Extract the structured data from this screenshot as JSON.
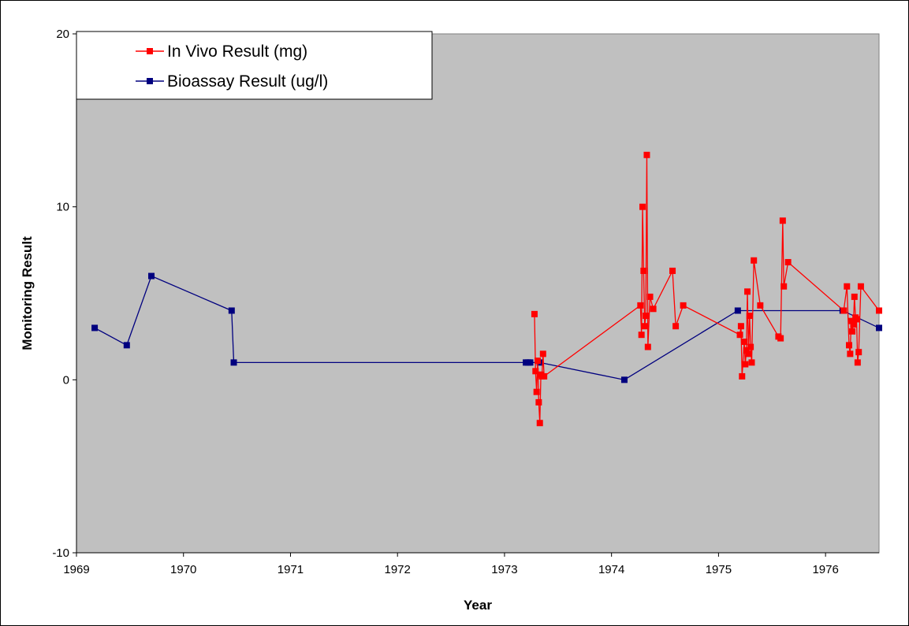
{
  "chart_data": {
    "type": "line",
    "title": "",
    "xlabel": "Year",
    "ylabel": "Monitoring Result",
    "xlim": [
      1969,
      1976.5
    ],
    "ylim": [
      -10,
      20
    ],
    "x_ticks": [
      1969,
      1970,
      1971,
      1972,
      1973,
      1974,
      1975,
      1976
    ],
    "y_ticks": [
      -10,
      0,
      10,
      20
    ],
    "grid": false,
    "legend_position": "top-left",
    "plot_background": "#c0c0c0",
    "series": [
      {
        "name": "In Vivo Result (mg)",
        "color": "#ff0000",
        "marker": "square",
        "points": [
          [
            1973.28,
            3.8
          ],
          [
            1973.29,
            0.5
          ],
          [
            1973.3,
            -0.7
          ],
          [
            1973.31,
            1.1
          ],
          [
            1973.32,
            -1.3
          ],
          [
            1973.33,
            -2.5
          ],
          [
            1973.34,
            0.3
          ],
          [
            1973.35,
            0.2
          ],
          [
            1973.36,
            1.5
          ],
          [
            1973.37,
            0.2
          ],
          [
            1974.27,
            4.3
          ],
          [
            1974.28,
            2.6
          ],
          [
            1974.29,
            10.0
          ],
          [
            1974.3,
            6.3
          ],
          [
            1974.31,
            3.1
          ],
          [
            1974.32,
            3.7
          ],
          [
            1974.33,
            13.0
          ],
          [
            1974.34,
            1.9
          ],
          [
            1974.36,
            4.8
          ],
          [
            1974.39,
            4.1
          ],
          [
            1974.57,
            6.3
          ],
          [
            1974.6,
            3.1
          ],
          [
            1974.67,
            4.3
          ],
          [
            1975.2,
            2.6
          ],
          [
            1975.21,
            3.1
          ],
          [
            1975.22,
            0.2
          ],
          [
            1975.24,
            2.2
          ],
          [
            1975.25,
            0.9
          ],
          [
            1975.26,
            1.7
          ],
          [
            1975.27,
            5.1
          ],
          [
            1975.28,
            1.5
          ],
          [
            1975.29,
            3.7
          ],
          [
            1975.3,
            1.9
          ],
          [
            1975.31,
            1.0
          ],
          [
            1975.33,
            6.9
          ],
          [
            1975.39,
            4.3
          ],
          [
            1975.56,
            2.5
          ],
          [
            1975.58,
            2.4
          ],
          [
            1975.6,
            9.2
          ],
          [
            1975.61,
            5.4
          ],
          [
            1975.65,
            6.8
          ],
          [
            1976.17,
            4.0
          ],
          [
            1976.2,
            5.4
          ],
          [
            1976.22,
            2.0
          ],
          [
            1976.23,
            1.5
          ],
          [
            1976.24,
            3.4
          ],
          [
            1976.25,
            2.8
          ],
          [
            1976.26,
            3.2
          ],
          [
            1976.27,
            4.8
          ],
          [
            1976.28,
            3.6
          ],
          [
            1976.29,
            3.5
          ],
          [
            1976.3,
            1.0
          ],
          [
            1976.31,
            1.6
          ],
          [
            1976.33,
            5.4
          ],
          [
            1976.5,
            4.0
          ]
        ]
      },
      {
        "name": "Bioassay Result (ug/l)",
        "color": "#00007f",
        "marker": "square",
        "points": [
          [
            1969.17,
            3.0
          ],
          [
            1969.47,
            2.0
          ],
          [
            1969.7,
            6.0
          ],
          [
            1970.45,
            4.0
          ],
          [
            1970.47,
            1.0
          ],
          [
            1973.2,
            1.0
          ],
          [
            1973.22,
            1.0
          ],
          [
            1973.24,
            1.0
          ],
          [
            1973.33,
            1.0
          ],
          [
            1974.12,
            0.0
          ],
          [
            1975.18,
            4.0
          ],
          [
            1976.16,
            4.0
          ],
          [
            1976.5,
            3.0
          ]
        ]
      }
    ]
  }
}
